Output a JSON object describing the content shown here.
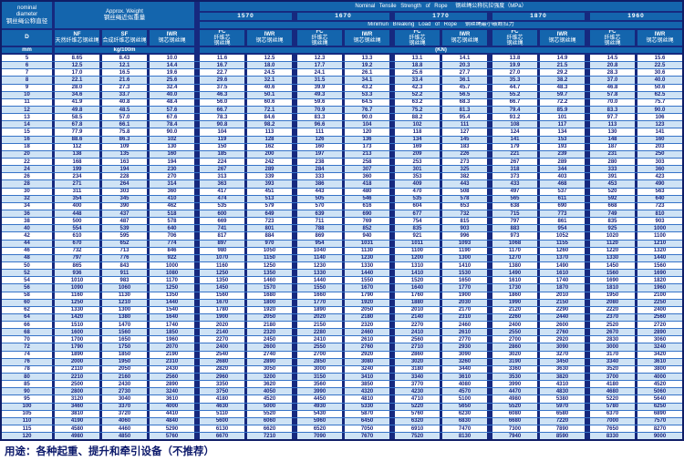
{
  "table": {
    "header": {
      "nominal_diameter_en": "nominal diameter",
      "nominal_diameter_zh": "钢丝绳公称直径",
      "diameter_symbol": "D",
      "diameter_unit": "mm",
      "approx_weight_en": "Approx. Weight",
      "approx_weight_zh": "钢丝绳近似重量",
      "weight_unit": "kg/100m",
      "weight_cols": [
        {
          "code": "NF",
          "zh": "天然纤维芯钢丝绳"
        },
        {
          "code": "SF",
          "zh": "合成纤维芯钢丝绳"
        },
        {
          "code": "IWR",
          "zh": "钢芯钢丝绳"
        }
      ],
      "tensile_title_en": "Nominal Tensile Strength of Rope",
      "tensile_title_zh": "钢丝绳公称抗拉强度（MPa）",
      "strengths": [
        "1570",
        "1670",
        "1770",
        "1870",
        "1960"
      ],
      "breaking_title_en": "Minimun Breaking Load of Rope",
      "breaking_title_zh": "钢丝绳最小破断拉力",
      "strength_cols": [
        {
          "code": "FC",
          "lines": [
            "纤维芯",
            "钢丝绳"
          ]
        },
        {
          "code": "IWR",
          "lines": [
            "钢芯钢丝绳"
          ]
        }
      ],
      "load_unit": "(KN)"
    },
    "rows": [
      [
        "5",
        "8.65",
        "8.43",
        "10.0",
        "11.6",
        "12.5",
        "12.3",
        "13.3",
        "13.1",
        "14.1",
        "13.8",
        "14.9",
        "14.5",
        "15.6"
      ],
      [
        "6",
        "12.5",
        "12.1",
        "14.4",
        "16.7",
        "18.0",
        "17.7",
        "19.2",
        "18.8",
        "20.3",
        "19.9",
        "21.5",
        "20.8",
        "22.5"
      ],
      [
        "7",
        "17.0",
        "16.5",
        "19.6",
        "22.7",
        "24.5",
        "24.1",
        "26.1",
        "25.6",
        "27.7",
        "27.0",
        "29.2",
        "28.3",
        "30.6"
      ],
      [
        "8",
        "22.1",
        "21.6",
        "25.6",
        "29.6",
        "32.1",
        "31.5",
        "34.1",
        "33.4",
        "36.1",
        "35.3",
        "38.2",
        "37.0",
        "40.0"
      ],
      [
        "9",
        "28.0",
        "27.3",
        "32.4",
        "37.5",
        "40.6",
        "39.9",
        "43.2",
        "42.3",
        "45.7",
        "44.7",
        "48.3",
        "46.8",
        "50.6"
      ],
      [
        "10",
        "34.6",
        "33.7",
        "40.0",
        "46.3",
        "50.1",
        "49.3",
        "53.3",
        "52.2",
        "56.5",
        "55.2",
        "59.7",
        "57.8",
        "62.5"
      ],
      [
        "11",
        "41.9",
        "40.8",
        "48.4",
        "56.0",
        "60.6",
        "59.6",
        "64.5",
        "63.2",
        "68.3",
        "66.7",
        "72.2",
        "70.0",
        "75.7"
      ],
      [
        "12",
        "49.8",
        "48.5",
        "57.6",
        "66.7",
        "72.1",
        "70.9",
        "76.7",
        "75.2",
        "81.3",
        "79.4",
        "85.9",
        "83.3",
        "90.0"
      ],
      [
        "13",
        "58.5",
        "57.0",
        "67.6",
        "78.3",
        "84.6",
        "83.3",
        "90.0",
        "88.2",
        "95.4",
        "93.2",
        "101",
        "97.7",
        "106"
      ],
      [
        "14",
        "67.8",
        "66.1",
        "78.4",
        "90.8",
        "98.2",
        "96.6",
        "104",
        "102",
        "111",
        "108",
        "117",
        "113",
        "123"
      ],
      [
        "15",
        "77.9",
        "75.8",
        "90.0",
        "104",
        "113",
        "111",
        "120",
        "118",
        "127",
        "124",
        "134",
        "130",
        "141"
      ],
      [
        "16",
        "88.6",
        "86.3",
        "102",
        "119",
        "128",
        "126",
        "136",
        "134",
        "145",
        "141",
        "153",
        "148",
        "160"
      ],
      [
        "18",
        "112",
        "109",
        "130",
        "150",
        "162",
        "160",
        "173",
        "169",
        "183",
        "179",
        "193",
        "187",
        "203"
      ],
      [
        "20",
        "138",
        "135",
        "160",
        "185",
        "200",
        "197",
        "213",
        "209",
        "226",
        "221",
        "239",
        "231",
        "250"
      ],
      [
        "22",
        "168",
        "163",
        "194",
        "224",
        "242",
        "238",
        "258",
        "253",
        "273",
        "267",
        "289",
        "280",
        "303"
      ],
      [
        "24",
        "199",
        "194",
        "230",
        "267",
        "289",
        "284",
        "307",
        "301",
        "325",
        "318",
        "344",
        "333",
        "360"
      ],
      [
        "26",
        "234",
        "228",
        "270",
        "313",
        "339",
        "333",
        "360",
        "353",
        "382",
        "373",
        "403",
        "391",
        "423"
      ],
      [
        "28",
        "271",
        "264",
        "314",
        "363",
        "393",
        "386",
        "418",
        "409",
        "443",
        "433",
        "468",
        "453",
        "490"
      ],
      [
        "30",
        "311",
        "303",
        "360",
        "417",
        "451",
        "443",
        "480",
        "470",
        "508",
        "497",
        "537",
        "520",
        "563"
      ],
      [
        "32",
        "354",
        "345",
        "410",
        "474",
        "513",
        "505",
        "546",
        "535",
        "578",
        "565",
        "611",
        "592",
        "640"
      ],
      [
        "34",
        "400",
        "390",
        "462",
        "535",
        "579",
        "570",
        "616",
        "604",
        "653",
        "638",
        "690",
        "668",
        "723"
      ],
      [
        "36",
        "448",
        "437",
        "518",
        "600",
        "649",
        "639",
        "690",
        "677",
        "732",
        "715",
        "773",
        "749",
        "810"
      ],
      [
        "38",
        "500",
        "487",
        "578",
        "669",
        "723",
        "711",
        "769",
        "754",
        "815",
        "797",
        "861",
        "835",
        "903"
      ],
      [
        "40",
        "554",
        "539",
        "640",
        "741",
        "801",
        "788",
        "852",
        "835",
        "903",
        "883",
        "954",
        "925",
        "1000"
      ],
      [
        "42",
        "610",
        "595",
        "706",
        "817",
        "884",
        "869",
        "940",
        "921",
        "996",
        "973",
        "1052",
        "1020",
        "1100"
      ],
      [
        "44",
        "670",
        "652",
        "774",
        "897",
        "970",
        "954",
        "1031",
        "1011",
        "1093",
        "1068",
        "1155",
        "1120",
        "1210"
      ],
      [
        "46",
        "732",
        "713",
        "846",
        "980",
        "1050",
        "1040",
        "1130",
        "1100",
        "1190",
        "1170",
        "1260",
        "1220",
        "1320"
      ],
      [
        "48",
        "797",
        "776",
        "922",
        "1070",
        "1150",
        "1140",
        "1230",
        "1200",
        "1300",
        "1270",
        "1370",
        "1330",
        "1440"
      ],
      [
        "50",
        "865",
        "843",
        "1000",
        "1160",
        "1250",
        "1230",
        "1330",
        "1310",
        "1410",
        "1380",
        "1490",
        "1450",
        "1560"
      ],
      [
        "52",
        "936",
        "911",
        "1080",
        "1250",
        "1350",
        "1330",
        "1440",
        "1410",
        "1530",
        "1490",
        "1610",
        "1560",
        "1690"
      ],
      [
        "54",
        "1010",
        "983",
        "1170",
        "1350",
        "1460",
        "1440",
        "1550",
        "1520",
        "1650",
        "1610",
        "1740",
        "1690",
        "1820"
      ],
      [
        "56",
        "1090",
        "1060",
        "1250",
        "1450",
        "1570",
        "1550",
        "1670",
        "1640",
        "1770",
        "1730",
        "1870",
        "1810",
        "1960"
      ],
      [
        "58",
        "1160",
        "1130",
        "1350",
        "1560",
        "1680",
        "1660",
        "1790",
        "1760",
        "1900",
        "1860",
        "2010",
        "1950",
        "2100"
      ],
      [
        "60",
        "1250",
        "1210",
        "1440",
        "1670",
        "1800",
        "1770",
        "1920",
        "1880",
        "2030",
        "1990",
        "2150",
        "2080",
        "2250"
      ],
      [
        "62",
        "1330",
        "1300",
        "1540",
        "1780",
        "1920",
        "1890",
        "2050",
        "2010",
        "2170",
        "2120",
        "2290",
        "2220",
        "2400"
      ],
      [
        "64",
        "1420",
        "1380",
        "1640",
        "1900",
        "2050",
        "2020",
        "2180",
        "2140",
        "2310",
        "2260",
        "2440",
        "2370",
        "2560"
      ],
      [
        "66",
        "1510",
        "1470",
        "1740",
        "2020",
        "2180",
        "2150",
        "2320",
        "2270",
        "2460",
        "2400",
        "2600",
        "2520",
        "2720"
      ],
      [
        "68",
        "1600",
        "1560",
        "1850",
        "2140",
        "2320",
        "2280",
        "2460",
        "2410",
        "2610",
        "2550",
        "2760",
        "2670",
        "2890"
      ],
      [
        "70",
        "1700",
        "1650",
        "1960",
        "2270",
        "2450",
        "2410",
        "2610",
        "2560",
        "2770",
        "2700",
        "2920",
        "2830",
        "3060"
      ],
      [
        "72",
        "1790",
        "1750",
        "2070",
        "2400",
        "2600",
        "2550",
        "2760",
        "2710",
        "2930",
        "2860",
        "3090",
        "3000",
        "3240"
      ],
      [
        "74",
        "1890",
        "1850",
        "2190",
        "2540",
        "2740",
        "2700",
        "2920",
        "2860",
        "3090",
        "3020",
        "3270",
        "3170",
        "3420"
      ],
      [
        "76",
        "2000",
        "1950",
        "2310",
        "2680",
        "2890",
        "2850",
        "3080",
        "3020",
        "3260",
        "3190",
        "3450",
        "3340",
        "3610"
      ],
      [
        "78",
        "2110",
        "2050",
        "2430",
        "2820",
        "3050",
        "3000",
        "3240",
        "3180",
        "3440",
        "3360",
        "3630",
        "3520",
        "3800"
      ],
      [
        "80",
        "2210",
        "2160",
        "2560",
        "2960",
        "3200",
        "3150",
        "3410",
        "3340",
        "3610",
        "3530",
        "3820",
        "3700",
        "4000"
      ],
      [
        "85",
        "2500",
        "2430",
        "2890",
        "3350",
        "3620",
        "3560",
        "3850",
        "3770",
        "4080",
        "3990",
        "4310",
        "4180",
        "4520"
      ],
      [
        "90",
        "2800",
        "2730",
        "3240",
        "3750",
        "4050",
        "3990",
        "4320",
        "4230",
        "4570",
        "4470",
        "4830",
        "4680",
        "5060"
      ],
      [
        "95",
        "3120",
        "3040",
        "3610",
        "4180",
        "4520",
        "4450",
        "4810",
        "4710",
        "5100",
        "4980",
        "5380",
        "5220",
        "5640"
      ],
      [
        "100",
        "3460",
        "3370",
        "4000",
        "4630",
        "5000",
        "4930",
        "5330",
        "5220",
        "5650",
        "5520",
        "5970",
        "5780",
        "6250"
      ],
      [
        "105",
        "3810",
        "3720",
        "4410",
        "5110",
        "5520",
        "5430",
        "5870",
        "5760",
        "6230",
        "6080",
        "6580",
        "6370",
        "6890"
      ],
      [
        "110",
        "4190",
        "4060",
        "4840",
        "5600",
        "6060",
        "5960",
        "6450",
        "6320",
        "6830",
        "6680",
        "7220",
        "7000",
        "7570"
      ],
      [
        "115",
        "4580",
        "4460",
        "5290",
        "6130",
        "6620",
        "6520",
        "7050",
        "6910",
        "7470",
        "7300",
        "7890",
        "7650",
        "8270"
      ],
      [
        "120",
        "4980",
        "4850",
        "5760",
        "6670",
        "7210",
        "7090",
        "7670",
        "7520",
        "8130",
        "7940",
        "8590",
        "8330",
        "9000"
      ]
    ]
  },
  "footer": {
    "note": "用途：各种起重、提升和牵引设备（不推荐）"
  },
  "colors": {
    "header_bg": "#1465ad",
    "grid_line": "#16297f",
    "row_alt": "#cfe3f5",
    "row_separator": "#3673c8",
    "value_text": "#141f7a",
    "header_text": "#ffffff",
    "note_text": "#0d1a6b",
    "page_bg": "#ffffff"
  }
}
